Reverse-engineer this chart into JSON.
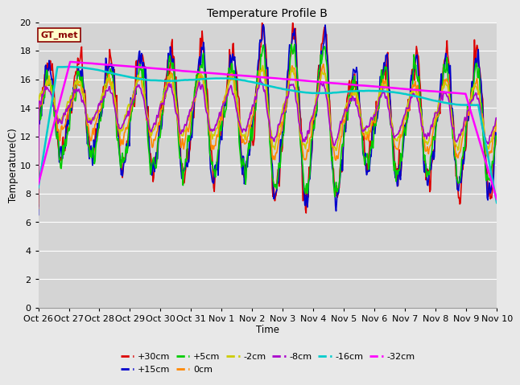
{
  "title": "Temperature Profile B",
  "xlabel": "Time",
  "ylabel": "Temperature(C)",
  "ylim": [
    0,
    20
  ],
  "background_color": "#e8e8e8",
  "plot_bg_color": "#d4d4d4",
  "grid_color": "#ffffff",
  "annotation_text": "GT_met",
  "annotation_bg": "#ffffcc",
  "annotation_border": "#8b0000",
  "series": {
    "+30cm": {
      "color": "#dd0000",
      "lw": 1.2
    },
    "+15cm": {
      "color": "#0000cc",
      "lw": 1.2
    },
    "+5cm": {
      "color": "#00cc00",
      "lw": 1.2
    },
    "0cm": {
      "color": "#ff8800",
      "lw": 1.2
    },
    "-2cm": {
      "color": "#cccc00",
      "lw": 1.2
    },
    "-8cm": {
      "color": "#aa00cc",
      "lw": 1.2
    },
    "-16cm": {
      "color": "#00cccc",
      "lw": 1.8
    },
    "-32cm": {
      "color": "#ff00ff",
      "lw": 1.8
    }
  },
  "tick_labels": [
    "Oct 26",
    "Oct 27",
    "Oct 28",
    "Oct 29",
    "Oct 30",
    "Oct 31",
    "Nov 1",
    "Nov 2",
    "Nov 3",
    "Nov 4",
    "Nov 5",
    "Nov 6",
    "Nov 7",
    "Nov 8",
    "Nov 9",
    "Nov 10"
  ],
  "tick_positions": [
    0,
    1,
    2,
    3,
    4,
    5,
    6,
    7,
    8,
    9,
    10,
    11,
    12,
    13,
    14,
    15
  ]
}
